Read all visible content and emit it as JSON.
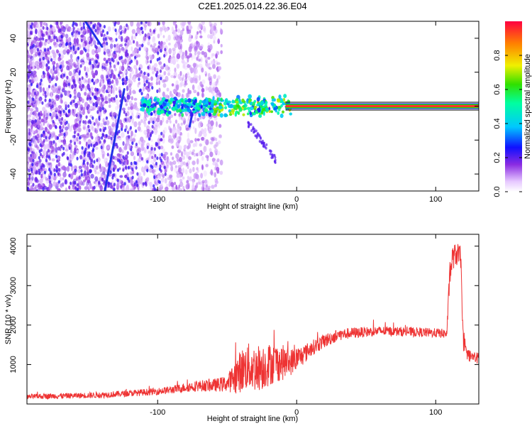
{
  "title": "C2E1.2025.014.22.36.E04",
  "chart_data": [
    {
      "type": "heatmap",
      "xlabel": "Height of straight line (km)",
      "ylabel": "Frequency (Hz)",
      "xlim": [
        -194,
        131
      ],
      "ylim": [
        -50,
        50
      ],
      "x_ticks": [
        -100,
        0,
        100
      ],
      "x_tick_labels": [
        "-100",
        "0",
        "100"
      ],
      "y_ticks": [
        -40,
        -20,
        0,
        20,
        40
      ],
      "y_tick_labels": [
        "-40",
        "-20",
        "0",
        "20",
        "40"
      ],
      "colorbar": {
        "label": "Normalized spectral amplitude",
        "range": [
          0,
          1
        ],
        "ticks": [
          0.0,
          0.2,
          0.4,
          0.6,
          0.8
        ],
        "tick_labels": [
          "0.0",
          "0.2",
          "0.4",
          "0.6",
          "0.8"
        ]
      },
      "features": {
        "carrier_line": {
          "x_start": -8,
          "x_end": 131,
          "frequency": 0,
          "amplitude": 0.95
        },
        "doppler_tracks": [
          {
            "x1": -152,
            "y1": 50,
            "x2": -140,
            "y2": 35
          },
          {
            "x1": -138,
            "y1": -50,
            "x2": -124,
            "y2": 10
          },
          {
            "x1": -77,
            "y1": -12,
            "x2": -75,
            "y2": -4
          }
        ]
      }
    },
    {
      "type": "line",
      "xlabel": "Height of straight line (km)",
      "ylabel": "SNR (10 * v/v)",
      "xlim": [
        -194,
        131
      ],
      "ylim": [
        0,
        4300
      ],
      "x_ticks": [
        -100,
        0,
        100
      ],
      "x_tick_labels": [
        "-100",
        "0",
        "100"
      ],
      "y_ticks": [
        1000,
        2000,
        3000,
        4000
      ],
      "y_tick_labels": [
        "1000",
        "2000",
        "3000",
        "4000"
      ],
      "color": "#ee3333",
      "series": [
        {
          "x": [
            -194,
            -180,
            -160,
            -140,
            -120,
            -100,
            -90,
            -80,
            -70,
            -60,
            -50,
            -44,
            -40,
            -35,
            -30,
            -25,
            -20,
            -15,
            -10,
            -5,
            0,
            5,
            10,
            20,
            30,
            40,
            60,
            80,
            100,
            108,
            110,
            112,
            115,
            118,
            120,
            122,
            125,
            131
          ],
          "y": [
            180,
            200,
            210,
            230,
            270,
            320,
            360,
            420,
            460,
            470,
            520,
            700,
            850,
            950,
            900,
            950,
            1000,
            1050,
            1050,
            1050,
            1150,
            1250,
            1400,
            1600,
            1750,
            1800,
            1850,
            1830,
            1800,
            1780,
            3200,
            3700,
            3800,
            3700,
            1450,
            1300,
            1200,
            1150
          ],
          "noise": [
            60,
            70,
            70,
            80,
            80,
            90,
            100,
            120,
            140,
            160,
            200,
            450,
            550,
            600,
            600,
            600,
            550,
            500,
            450,
            350,
            300,
            250,
            200,
            180,
            150,
            140,
            120,
            120,
            120,
            120,
            300,
            300,
            300,
            300,
            200,
            150,
            150,
            150
          ]
        }
      ]
    }
  ]
}
